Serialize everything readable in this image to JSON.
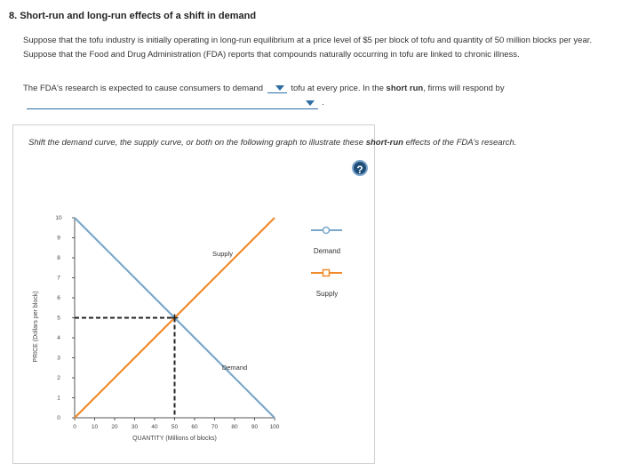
{
  "question": {
    "title": "8. Short-run and long-run effects of a shift in demand",
    "paragraph": "Suppose that the tofu industry is initially operating in long-run equilibrium at a price level of $5 per block of tofu and quantity of 50 million blocks per year. Suppose that the Food and Drug Administration (FDA) reports that compounds naturally occurring in tofu are linked to chronic illness.",
    "line_before": "The FDA's research is expected to cause consumers to demand",
    "line_middle": "tofu at every price. In the",
    "bold_phrase": "short run",
    "line_after": ", firms will respond by",
    "period": ".",
    "instruction_before": "Shift the demand curve, the supply curve, or both on the following graph to illustrate these",
    "instruction_bold": "short-run",
    "instruction_after": "effects of the FDA's research.",
    "help": "?"
  },
  "legend": {
    "demand": "Demand",
    "supply": "Supply"
  },
  "colors": {
    "demand": "#7aa7c9",
    "supply": "#f08a2a",
    "dropdown": "#2e6da4",
    "help": "#1f4e79"
  },
  "chart_data": {
    "type": "line",
    "xlabel": "QUANTITY (Millions of blocks)",
    "ylabel": "PRICE (Dollars per block)",
    "xlim": [
      0,
      100
    ],
    "ylim": [
      0,
      10
    ],
    "x_ticks": [
      "0",
      "10",
      "20",
      "30",
      "40",
      "50",
      "60",
      "70",
      "80",
      "90",
      "100"
    ],
    "y_ticks": [
      "0",
      "1",
      "2",
      "3",
      "4",
      "5",
      "6",
      "7",
      "8",
      "9",
      "10"
    ],
    "series": [
      {
        "name": "Supply",
        "points": [
          [
            0,
            0
          ],
          [
            100,
            10
          ]
        ]
      },
      {
        "name": "Demand",
        "points": [
          [
            0,
            10
          ],
          [
            100,
            0
          ]
        ]
      }
    ],
    "equilibrium": {
      "x": 50,
      "y": 5
    },
    "grid": false
  }
}
